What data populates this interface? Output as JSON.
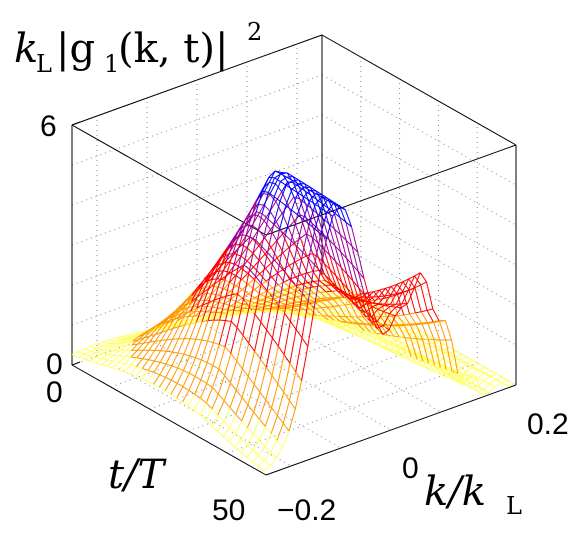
{
  "chart_data": {
    "type": "surface",
    "zlabel": {
      "pre": "k",
      "sub": "L",
      "mid": "|g",
      "sub2": "1",
      "args": "(k, t)|",
      "sup": "2"
    },
    "xlabel": {
      "pre": "k/k",
      "sub": "L"
    },
    "ylabel": {
      "text": "t/T"
    },
    "x_ticks": [
      "−0.2",
      "0",
      "0.2"
    ],
    "y_ticks": [
      "0",
      "50"
    ],
    "z_ticks": [
      "0",
      "6"
    ],
    "xlim": [
      -0.25,
      0.25
    ],
    "ylim": [
      0,
      50
    ],
    "zlim": [
      0,
      6
    ],
    "grid": true,
    "colormap": [
      "#ffff66",
      "#ff9900",
      "#ff0000",
      "#990099",
      "#0000ff"
    ],
    "surface": {
      "description_of_values": "k_L|g1(k,t)|^2 sampled on k grid, rows in t",
      "k": [
        -0.25,
        -0.225,
        -0.2,
        -0.175,
        -0.15,
        -0.125,
        -0.1,
        -0.075,
        -0.05,
        -0.025,
        0,
        0.025,
        0.05,
        0.075,
        0.1,
        0.125,
        0.15,
        0.175,
        0.2,
        0.225,
        0.25
      ],
      "t": [
        0,
        5,
        10,
        15,
        20,
        25,
        30,
        35,
        40,
        45,
        50
      ],
      "peak_left_center": -0.1,
      "peak_right_center": 0.06,
      "peak_left_max": 6.0,
      "peak_right_max": 3.4
    }
  }
}
